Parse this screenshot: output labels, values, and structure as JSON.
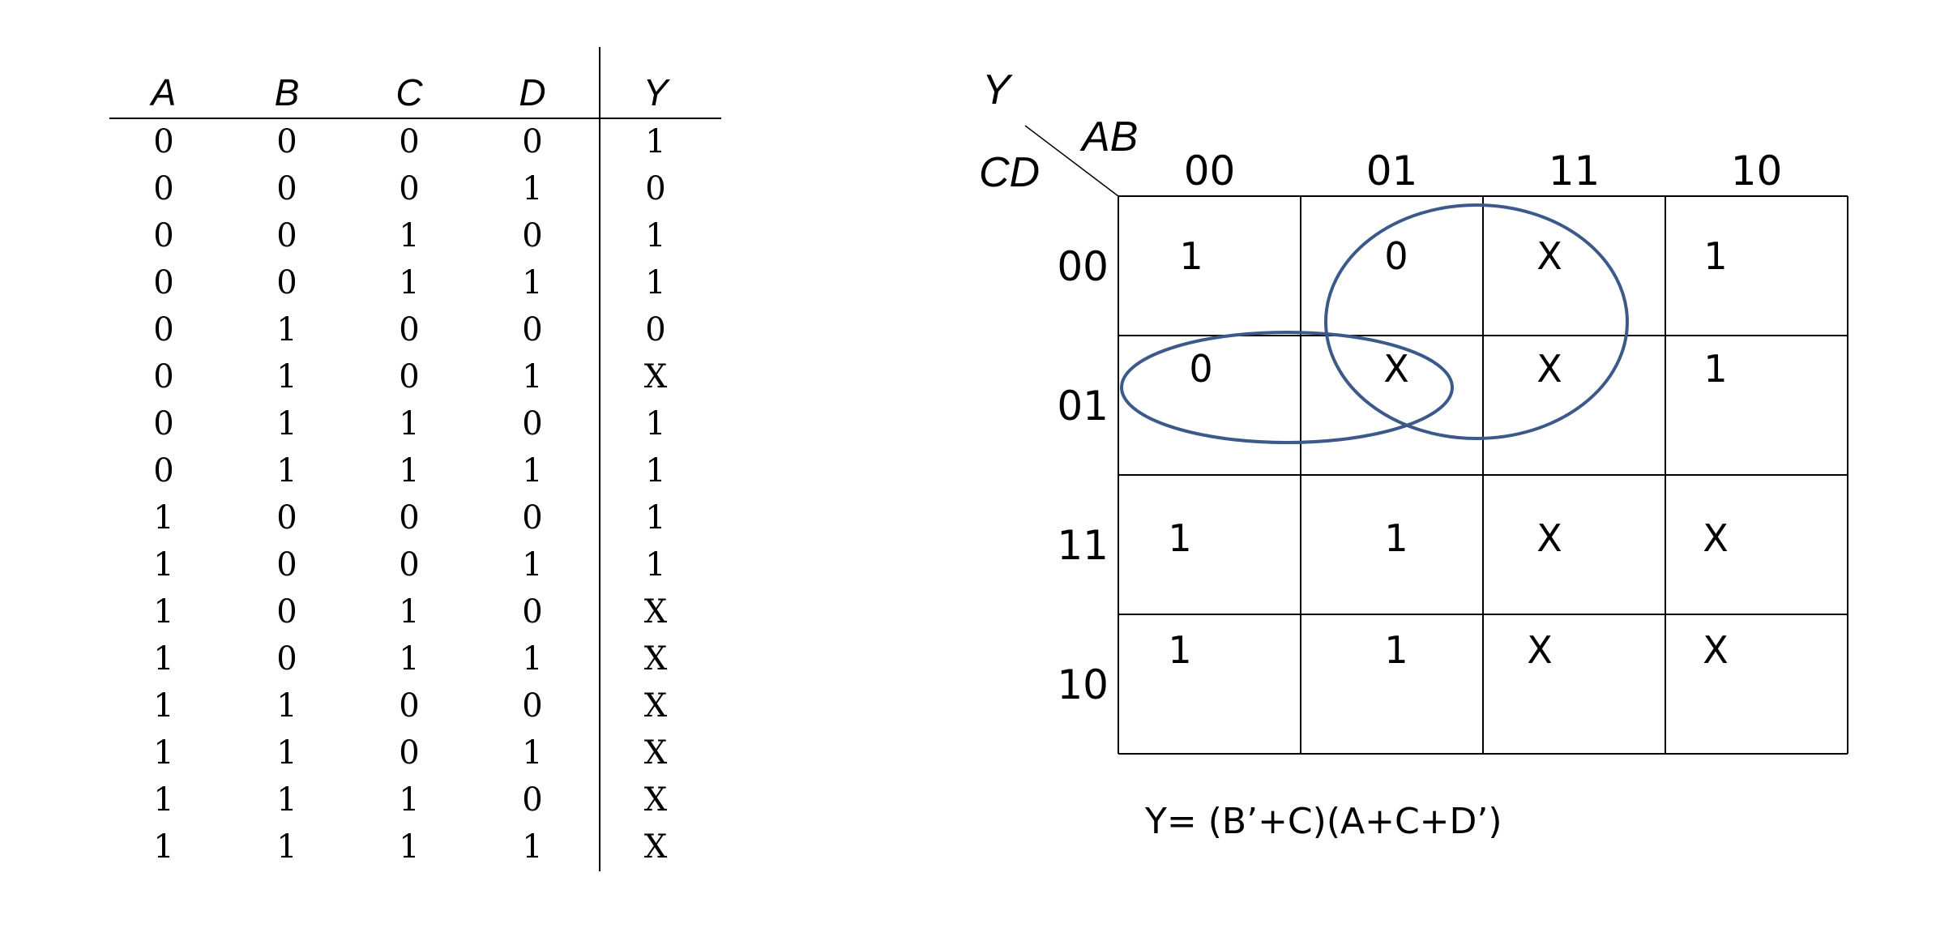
{
  "truth_table": {
    "inputs": [
      "A",
      "B",
      "C",
      "D"
    ],
    "output": "Y",
    "rows": [
      [
        "0",
        "0",
        "0",
        "0",
        "1"
      ],
      [
        "0",
        "0",
        "0",
        "1",
        "0"
      ],
      [
        "0",
        "0",
        "1",
        "0",
        "1"
      ],
      [
        "0",
        "0",
        "1",
        "1",
        "1"
      ],
      [
        "0",
        "1",
        "0",
        "0",
        "0"
      ],
      [
        "0",
        "1",
        "0",
        "1",
        "X"
      ],
      [
        "0",
        "1",
        "1",
        "0",
        "1"
      ],
      [
        "0",
        "1",
        "1",
        "1",
        "1"
      ],
      [
        "1",
        "0",
        "0",
        "0",
        "1"
      ],
      [
        "1",
        "0",
        "0",
        "1",
        "1"
      ],
      [
        "1",
        "0",
        "1",
        "0",
        "X"
      ],
      [
        "1",
        "0",
        "1",
        "1",
        "X"
      ],
      [
        "1",
        "1",
        "0",
        "0",
        "X"
      ],
      [
        "1",
        "1",
        "0",
        "1",
        "X"
      ],
      [
        "1",
        "1",
        "1",
        "0",
        "X"
      ],
      [
        "1",
        "1",
        "1",
        "1",
        "X"
      ]
    ]
  },
  "kmap": {
    "output_label": "Y",
    "col_var": "AB",
    "row_var": "CD",
    "col_labels": [
      "00",
      "01",
      "11",
      "10"
    ],
    "row_labels": [
      "00",
      "01",
      "11",
      "10"
    ],
    "cells": [
      [
        "1",
        "0",
        "X",
        "1"
      ],
      [
        "0",
        "X",
        "X",
        "1"
      ],
      [
        "1",
        "1",
        "X",
        "X"
      ],
      [
        "1",
        "1",
        "X",
        "X"
      ]
    ],
    "loop_color": "#3b5a8a",
    "expression": "Y= (B’+C)(A+C+D’)"
  }
}
